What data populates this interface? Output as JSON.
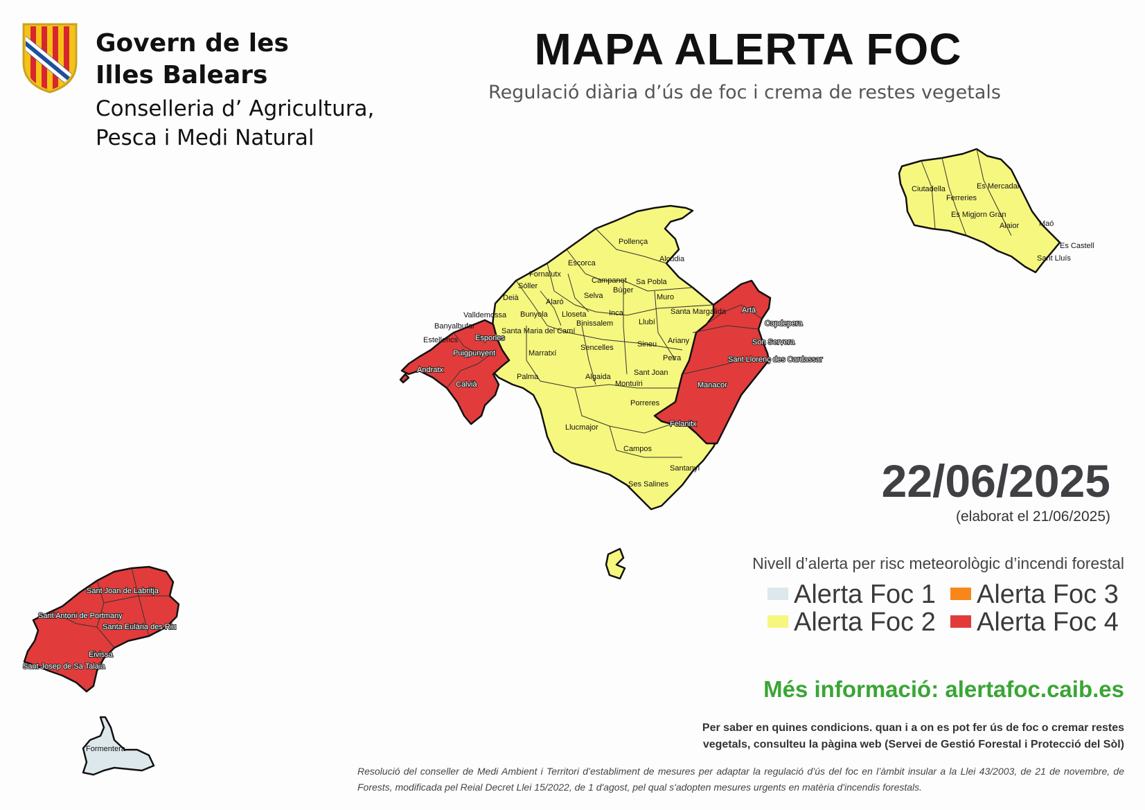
{
  "header": {
    "org_line1": "Govern de les",
    "org_line2": "Illes Balears",
    "dept_line1": "Conselleria d’ Agricultura,",
    "dept_line2": "Pesca i Medi Natural",
    "title": "MAPA ALERTA FOC",
    "subtitle": "Regulació diària d’ús de foc i crema de restes vegetals"
  },
  "date": {
    "forecast_date": "22/06/2025",
    "elaborated": "(elaborat el 21/06/2025)"
  },
  "legend": {
    "title": "Nivell d’alerta per risc meteorològic d’incendi forestal",
    "items": [
      {
        "label": "Alerta Foc 1",
        "color": "#dde8ec"
      },
      {
        "label": "Alerta Foc 2",
        "color": "#f6f77e"
      },
      {
        "label": "Alerta Foc 3",
        "color": "#f7871a"
      },
      {
        "label": "Alerta Foc 4",
        "color": "#e23b3b"
      }
    ]
  },
  "info": {
    "more_info": "Més informació: alertafoc.caib.es",
    "note": "Per saber en quines condicions. quan i a on es pot fer ús de foc o cremar restes vegetals, consulteu la pàgina web (Servei de Gestió Forestal i Protecció del Sòl)",
    "legal": "Resolució del conseller de Medi Ambient i Territori d’establiment de mesures per adaptar la regulació d’ús del foc en l’àmbit insular a la Llei 43/2003, de 21 de novembre, de Forests, modificada pel Reial Decret Llei 15/2022, de 1 d'agost, pel qual s'adopten mesures urgents en matèria d'incendis forestals."
  },
  "map": {
    "islands": [
      {
        "name": "Mallorca",
        "alert_level": 2
      },
      {
        "name": "Menorca",
        "alert_level": 2
      },
      {
        "name": "Eivissa",
        "alert_level": 4
      },
      {
        "name": "Formentera",
        "alert_level": 1
      }
    ],
    "municipalities_level4": [
      "Andratx",
      "Calvià",
      "Puigpunyent",
      "Estellencs",
      "Esporles",
      "Artà",
      "Capdepera",
      "Son Servera",
      "Sant Llorenç des Cardassar",
      "Manacor",
      "Felanitx",
      "Sant Joan de Labritja",
      "Sant Antoni de Portmany",
      "Santa Eulària des Riu",
      "Eivissa",
      "Sant Josep de Sa Talaia"
    ],
    "labels": {
      "pollenca": "Pollença",
      "alcudia": "Alcúdia",
      "escorca": "Escorca",
      "fornalutx": "Fornalutx",
      "soller": "Sóller",
      "campanet": "Campanet",
      "sa_pobla": "Sa Pobla",
      "buger": "Búger",
      "deia": "Deià",
      "selva": "Selva",
      "muro": "Muro",
      "alaro": "Alaró",
      "valldemossa": "Valldemossa",
      "bunyola": "Bunyola",
      "lloseta": "Lloseta",
      "inca": "Inca",
      "santa_margalida": "Santa Margalida",
      "arta": "Artà",
      "banyalbufar": "Banyalbufar",
      "binissalem": "Binissalem",
      "llubi": "Llubí",
      "capdepera": "Capdepera",
      "santa_maria": "Santa Maria del Camí",
      "estellencs": "Estellencs",
      "esporles": "Esporles",
      "sencelles": "Sencelles",
      "sineu": "Sineu",
      "ariany": "Ariany",
      "son_servera": "Son Servera",
      "puigpunyent": "Puigpunyent",
      "marratxi": "Marratxí",
      "petra": "Petra",
      "sant_llorenc": "Sant Llorenç des Cardassar",
      "andratx": "Andratx",
      "palma": "Palma",
      "algaida": "Algaida",
      "sant_joan": "Sant Joan",
      "montuiri": "Montuïri",
      "manacor": "Manacor",
      "calvia": "Calvià",
      "porreres": "Porreres",
      "llucmajor": "Llucmajor",
      "felanitx": "Felanitx",
      "campos": "Campos",
      "santanyi": "Santanyí",
      "ses_salines": "Ses Salines",
      "ciutadella": "Ciutadella",
      "es_mercadal": "Es Mercadal",
      "ferreries": "Ferreries",
      "es_migjorn": "Es Migjorn Gran",
      "alaior": "Alaior",
      "mao": "Maó",
      "es_castell": "Es Castell",
      "sant_lluis": "Sant Lluís",
      "sant_joan_labritja": "Sant Joan de Labritja",
      "sant_antoni": "Sant Antoni de Portmany",
      "santa_eularia": "Santa Eulària des Riu",
      "eivissa": "Eivissa",
      "sant_josep": "Sant Josep de Sa Talaia",
      "formentera": "Formentera"
    }
  }
}
